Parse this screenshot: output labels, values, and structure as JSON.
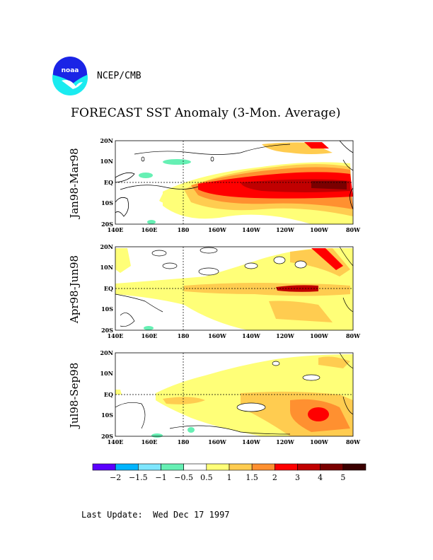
{
  "header": {
    "agency": "NCEP/CMB",
    "logo_text": "noaa",
    "title": "FORECAST SST Anomaly (3-Mon. Average)"
  },
  "panels": [
    {
      "label": "Jan98-Mar98"
    },
    {
      "label": "Apr98-Jun98"
    },
    {
      "label": "Jul98-Sep98"
    }
  ],
  "axes": {
    "x_ticks": [
      "140E",
      "160E",
      "180",
      "160W",
      "140W",
      "120W",
      "100W",
      "80W"
    ],
    "y_ticks": [
      "20N",
      "10N",
      "EQ",
      "10S",
      "20S"
    ]
  },
  "legend": {
    "colors": [
      "#5b00ff",
      "#00b4ff",
      "#7ee6ff",
      "#66f0b4",
      "#ffffff",
      "#ffff78",
      "#ffcc50",
      "#ff9030",
      "#ff0000",
      "#c00000",
      "#7a0000",
      "#3a0000"
    ],
    "labels": [
      "-2",
      "-1.5",
      "-1",
      "-0.5",
      "0.5",
      "1",
      "1.5",
      "2",
      "3",
      "4",
      "5"
    ]
  },
  "footer": {
    "label": "Last Update:",
    "date": "Wed Dec 17 1997"
  }
}
